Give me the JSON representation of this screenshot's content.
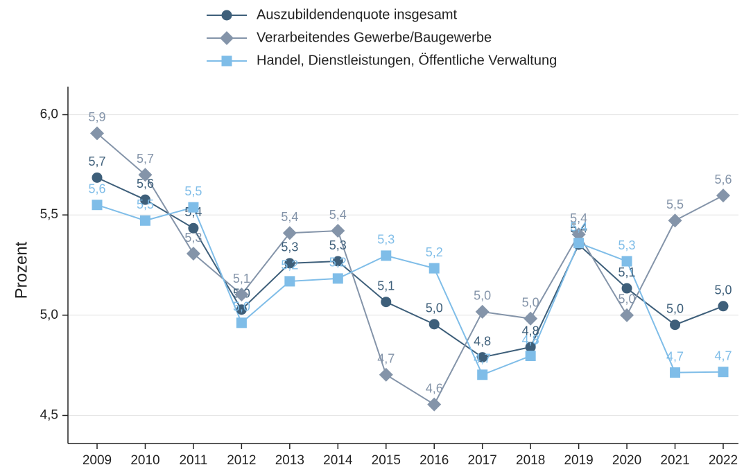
{
  "chart_data": {
    "type": "line",
    "y_label": "Prozent",
    "categories": [
      "2009",
      "2010",
      "2011",
      "2012",
      "2013",
      "2014",
      "2015",
      "2016",
      "2017",
      "2018",
      "2019",
      "2020",
      "2021",
      "2022"
    ],
    "series": [
      {
        "name": "Auszubildendenquote insgesamt",
        "color": "#3e5f7a",
        "marker": "circle",
        "values": [
          5.686,
          5.576,
          5.434,
          5.028,
          5.259,
          5.269,
          5.066,
          4.955,
          4.79,
          4.841,
          5.352,
          5.134,
          4.952,
          5.045
        ],
        "value_labels": [
          "5,7",
          "5,6",
          "5,4",
          "5,0",
          "5,3",
          "5,3",
          "5,1",
          "5,0",
          "4,8",
          "4,8",
          "5,4",
          "5,1",
          "5,0",
          "5,0"
        ]
      },
      {
        "name": "Verarbeitendes Gewerbe/Baugewerbe",
        "color": "#8494a9",
        "marker": "diamond",
        "values": [
          5.907,
          5.7,
          5.307,
          5.103,
          5.41,
          5.421,
          4.703,
          4.555,
          5.017,
          4.983,
          5.403,
          5.0,
          5.472,
          5.597
        ],
        "value_labels": [
          "5,9",
          "5,7",
          "5,3",
          "5,1",
          "5,4",
          "5,4",
          "4,7",
          "4,6",
          "5,0",
          "5,0",
          "5,4",
          "5,0",
          "5,5",
          "5,6"
        ]
      },
      {
        "name": "Handel, Dienstleistungen, Öffentliche Verwaltung",
        "color": "#7fbde8",
        "marker": "square",
        "values": [
          5.55,
          5.472,
          5.538,
          4.962,
          5.169,
          5.183,
          5.297,
          5.234,
          4.703,
          4.797,
          5.36,
          5.269,
          4.714,
          4.717
        ],
        "value_labels": [
          "5,6",
          "5,5",
          "5,5",
          "5,0",
          "5,2",
          "5,2",
          "5,3",
          "5,2",
          "4,7",
          "4,8",
          "5,4",
          "5,3",
          "4,7",
          "4,7"
        ]
      }
    ],
    "ylim": [
      4.36,
      6.14
    ],
    "yticks": [
      {
        "value": 4.5,
        "label": "4,5"
      },
      {
        "value": 5.0,
        "label": "5,0"
      },
      {
        "value": 5.5,
        "label": "5,5"
      },
      {
        "value": 6.0,
        "label": "6,0"
      }
    ],
    "grid": true,
    "legend": "top"
  }
}
